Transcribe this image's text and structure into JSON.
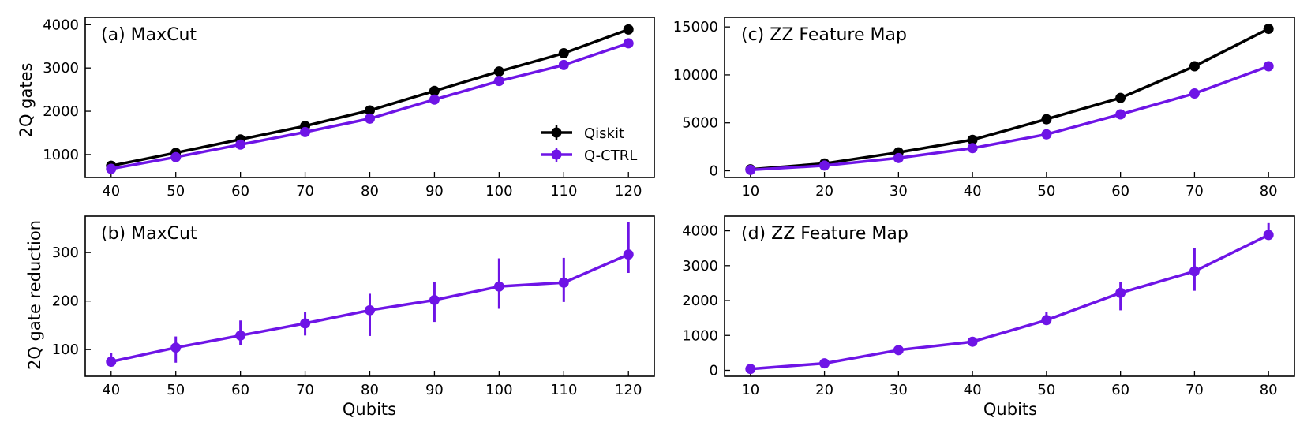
{
  "colors": {
    "qiskit": "#000000",
    "qctrl": "#6e14e6"
  },
  "legend": {
    "items": [
      "Qiskit",
      "Q-CTRL"
    ]
  },
  "chart_data": [
    {
      "id": "a",
      "type": "line",
      "title": "(a) MaxCut",
      "xlabel": "",
      "ylabel": "2Q gates",
      "x": [
        40,
        50,
        60,
        70,
        80,
        90,
        100,
        110,
        120
      ],
      "xlim": [
        36,
        124
      ],
      "ylim": [
        470,
        4170
      ],
      "xticks": [
        40,
        50,
        60,
        70,
        80,
        90,
        100,
        110,
        120
      ],
      "yticks": [
        1000,
        2000,
        3000,
        4000
      ],
      "series": [
        {
          "name": "Qiskit",
          "color": "#000000",
          "values": [
            740,
            1040,
            1350,
            1660,
            2020,
            2470,
            2920,
            3340,
            3890
          ]
        },
        {
          "name": "Q-CTRL",
          "color": "#6e14e6",
          "values": [
            670,
            940,
            1230,
            1520,
            1830,
            2270,
            2700,
            3070,
            3570
          ]
        }
      ],
      "legend": "lower-right"
    },
    {
      "id": "b",
      "type": "line",
      "title": "(b) MaxCut",
      "xlabel": "Qubits",
      "ylabel": "2Q gate reduction",
      "x": [
        40,
        50,
        60,
        70,
        80,
        90,
        100,
        110,
        120
      ],
      "xlim": [
        36,
        124
      ],
      "ylim": [
        45,
        375
      ],
      "xticks": [
        40,
        50,
        60,
        70,
        80,
        90,
        100,
        110,
        120
      ],
      "yticks": [
        100,
        200,
        300
      ],
      "series": [
        {
          "name": "Q-CTRL",
          "color": "#6e14e6",
          "values": [
            75,
            104,
            129,
            154,
            181,
            202,
            230,
            238,
            296
          ],
          "err_low": [
            65,
            73,
            110,
            129,
            128,
            157,
            184,
            198,
            258
          ],
          "err_high": [
            93,
            127,
            160,
            178,
            215,
            240,
            288,
            289,
            362
          ]
        }
      ]
    },
    {
      "id": "c",
      "type": "line",
      "title": "(c) ZZ Feature Map",
      "xlabel": "",
      "ylabel": "",
      "x": [
        10,
        20,
        30,
        40,
        50,
        60,
        70,
        80
      ],
      "xlim": [
        6.5,
        83.5
      ],
      "ylim": [
        -700,
        16000
      ],
      "xticks": [
        10,
        20,
        30,
        40,
        50,
        60,
        70,
        80
      ],
      "yticks": [
        0,
        5000,
        10000,
        15000
      ],
      "series": [
        {
          "name": "Qiskit",
          "color": "#000000",
          "values": [
            150,
            760,
            1920,
            3230,
            5380,
            7600,
            10900,
            14800
          ]
        },
        {
          "name": "Q-CTRL",
          "color": "#6e14e6",
          "values": [
            90,
            540,
            1330,
            2360,
            3800,
            5880,
            8060,
            10900
          ]
        }
      ]
    },
    {
      "id": "d",
      "type": "line",
      "title": "(d) ZZ Feature Map",
      "xlabel": "Qubits",
      "ylabel": "",
      "x": [
        10,
        20,
        30,
        40,
        50,
        60,
        70,
        80
      ],
      "xlim": [
        6.5,
        83.5
      ],
      "ylim": [
        -170,
        4420
      ],
      "xticks": [
        10,
        20,
        30,
        40,
        50,
        60,
        70,
        80
      ],
      "yticks": [
        0,
        1000,
        2000,
        3000,
        4000
      ],
      "series": [
        {
          "name": "Q-CTRL",
          "color": "#6e14e6",
          "values": [
            40,
            200,
            580,
            820,
            1440,
            2220,
            2840,
            3880
          ],
          "err_low": [
            10,
            170,
            540,
            790,
            1390,
            1720,
            2280,
            3750
          ],
          "err_high": [
            70,
            230,
            620,
            850,
            1670,
            2530,
            3500,
            4220
          ]
        }
      ]
    }
  ]
}
